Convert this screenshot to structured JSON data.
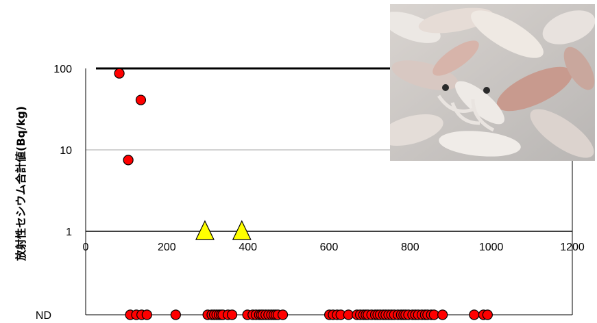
{
  "chart_data": {
    "type": "scatter",
    "title": "",
    "xlabel": "",
    "ylabel": "放射性セシウム合計値(Bq/kg)",
    "xlim": [
      0,
      1200
    ],
    "ylim": [
      1,
      100
    ],
    "yscale": "log",
    "x_ticks": [
      "0",
      "200",
      "400",
      "600",
      "800",
      "1000",
      "1200"
    ],
    "y_ticks": [
      "100",
      "10",
      "1"
    ],
    "nd_label": "ND",
    "reference_line": 100,
    "grid": "horizontal",
    "legend": "none",
    "colors": {
      "circle": "#ff0000",
      "triangle": "#ffff00",
      "grid": "#a6a6a6"
    },
    "series": [
      {
        "marker": "circle",
        "detected": [
          {
            "x": 83,
            "y": 87
          },
          {
            "x": 136,
            "y": 41
          },
          {
            "x": 105,
            "y": 7.5
          }
        ],
        "nd_x": [
          110,
          125,
          138,
          151,
          222,
          301,
          311,
          317,
          323,
          329,
          334,
          338,
          351,
          361,
          399,
          412,
          420,
          428,
          433,
          437,
          444,
          451,
          458,
          464,
          469,
          474,
          486,
          601,
          610,
          620,
          629,
          648,
          669,
          677,
          685,
          691,
          696,
          705,
          714,
          720,
          726,
          734,
          740,
          747,
          754,
          761,
          770,
          778,
          784,
          789,
          796,
          806,
          813,
          820,
          829,
          837,
          843,
          852,
          859,
          880,
          958,
          981,
          991
        ]
      },
      {
        "marker": "triangle",
        "detected": [
          {
            "x": 294,
            "y": 1
          },
          {
            "x": 385,
            "y": 1
          }
        ]
      }
    ]
  },
  "photo": {
    "subject": "squid-photo"
  }
}
